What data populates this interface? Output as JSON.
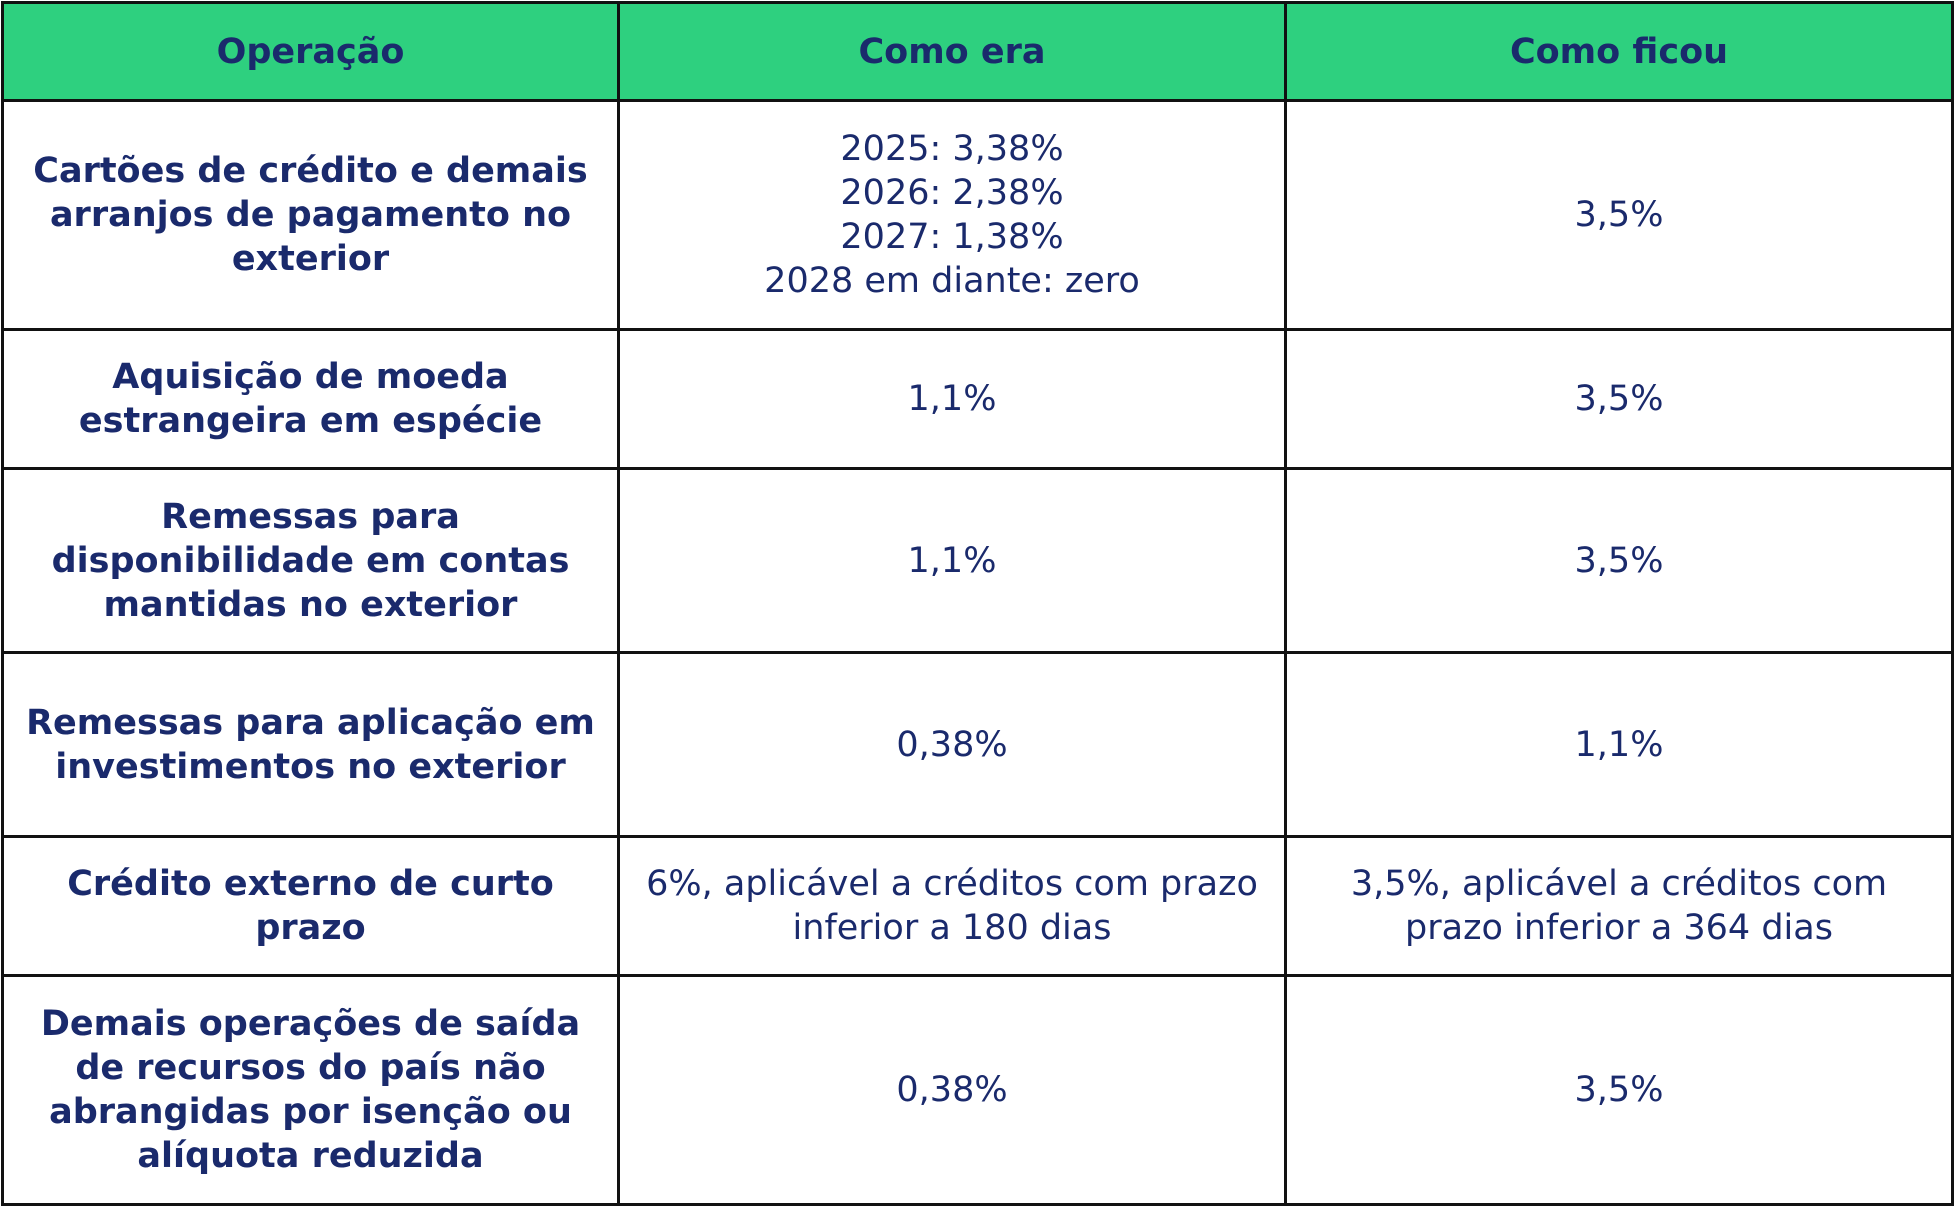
{
  "table": {
    "headers": [
      "Operação",
      "Como era",
      "Como ficou"
    ],
    "rows": [
      {
        "operacao": "Cartões de crédito e demais arranjos de pagamento no exterior",
        "como_era": [
          "2025: 3,38%",
          "2026: 2,38%",
          "2027: 1,38%",
          "2028 em diante: zero"
        ],
        "como_ficou": "3,5%"
      },
      {
        "operacao": "Aquisição de moeda estrangeira em espécie",
        "como_era": "1,1%",
        "como_ficou": "3,5%"
      },
      {
        "operacao": "Remessas para disponibilidade em contas mantidas no exterior",
        "como_era": "1,1%",
        "como_ficou": "3,5%"
      },
      {
        "operacao": "Remessas para aplicação em investimentos no exterior",
        "como_era": "0,38%",
        "como_ficou": "1,1%"
      },
      {
        "operacao": "Crédito externo de curto prazo",
        "como_era": "6%, aplicável a créditos com prazo inferior a 180 dias",
        "como_ficou": "3,5%, aplicável a créditos com prazo inferior a 364 dias"
      },
      {
        "operacao": "Demais operações de saída de recursos do país não abrangidas por isenção ou alíquota reduzida",
        "como_era": "0,38%",
        "como_ficou": "3,5%"
      }
    ]
  },
  "colors": {
    "header_background": "#2ed07f",
    "text": "#1a2a6c",
    "border": "#111111"
  }
}
